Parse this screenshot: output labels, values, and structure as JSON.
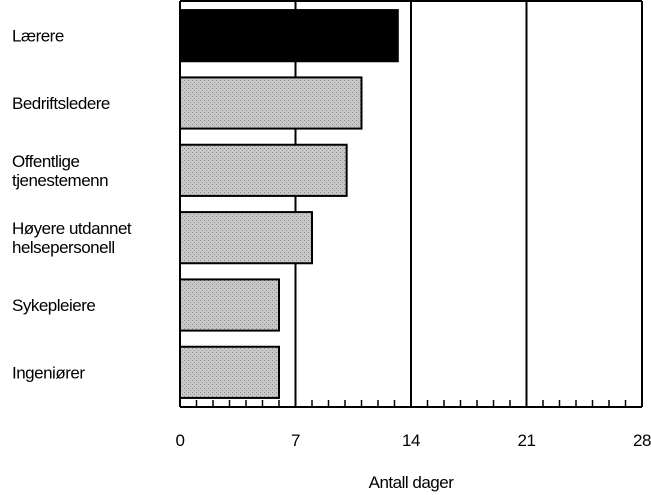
{
  "chart_data": {
    "type": "barh",
    "categories": [
      "Lærere",
      "Bedriftsledere",
      "Offentlige\ntjenestemenn",
      "Høyere utdannet\nhelsepersonell",
      "Sykepleiere",
      "Ingeniører"
    ],
    "values": [
      13.2,
      11.0,
      10.1,
      8.0,
      6.0,
      6.0
    ],
    "colors": [
      "#000000",
      "#bdbdbd",
      "#bdbdbd",
      "#bdbdbd",
      "#bdbdbd",
      "#bdbdbd"
    ],
    "xlabel": "Antall dager",
    "xlim": [
      0,
      28
    ],
    "xticks": [
      0,
      7,
      14,
      21,
      28
    ],
    "grid": true
  }
}
